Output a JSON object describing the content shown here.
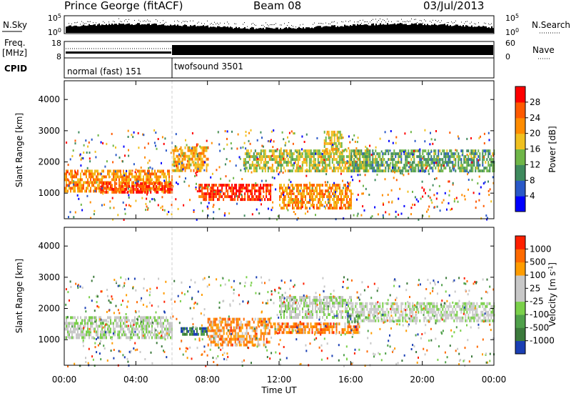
{
  "header": {
    "station": "Prince George (fitACF)",
    "beam": "Beam 08",
    "date": "03/Jul/2013"
  },
  "nsky_panel": {
    "left_label": "N.Sky",
    "left_ticks": [
      "10^5",
      "10^0"
    ],
    "right_label": "N.Search",
    "right_ticks": [
      "10^5",
      "10^0"
    ]
  },
  "freq_panel": {
    "left_label_1": "Freq.",
    "left_label_2": "[MHz]",
    "left_ticks": [
      "18",
      "8"
    ],
    "right_label": "Nave",
    "right_ticks": [
      "60",
      "0"
    ]
  },
  "cpid_panel": {
    "label": "CPID",
    "modes": [
      {
        "name": "normal (fast) 151",
        "start_h": 0
      },
      {
        "name": "twofsound 3501",
        "start_h": 6
      }
    ]
  },
  "x_axis": {
    "title": "Time UT",
    "ticks": [
      "00:00",
      "04:00",
      "08:00",
      "12:00",
      "16:00",
      "20:00",
      "00:00"
    ]
  },
  "chart_data": [
    {
      "type": "heatmap",
      "name": "power",
      "ylabel": "Slant Range [km]",
      "yticks": [
        "1000",
        "2000",
        "3000",
        "4000"
      ],
      "ylim": [
        180,
        4600
      ],
      "xlim_hours": [
        0,
        24
      ],
      "colorbar": {
        "label": "Power [dB]",
        "ticks": [
          "4",
          "8",
          "12",
          "16",
          "20",
          "24",
          "28"
        ],
        "range": [
          0,
          30
        ],
        "colors": [
          "#0000ff",
          "#2a59c8",
          "#3f8a5e",
          "#6fb648",
          "#f0c020",
          "#ff8c00",
          "#ff5a00",
          "#ff0000"
        ]
      },
      "regions": [
        {
          "t0": 0,
          "t1": 6,
          "r0": 1100,
          "r1": 1750,
          "level": 0.72
        },
        {
          "t0": 2,
          "t1": 6,
          "r0": 1000,
          "r1": 1350,
          "level": 0.92
        },
        {
          "t0": 6,
          "t1": 8,
          "r0": 1700,
          "r1": 2500,
          "level": 0.65
        },
        {
          "t0": 7.5,
          "t1": 11.5,
          "r0": 800,
          "r1": 1300,
          "level": 0.95
        },
        {
          "t0": 10,
          "t1": 17,
          "r0": 1700,
          "r1": 2400,
          "level": 0.5
        },
        {
          "t0": 12,
          "t1": 16,
          "r0": 500,
          "r1": 1300,
          "level": 0.7
        },
        {
          "t0": 14.5,
          "t1": 15.5,
          "r0": 2300,
          "r1": 3000,
          "level": 0.55
        },
        {
          "t0": 16,
          "t1": 24,
          "r0": 1700,
          "r1": 2400,
          "level": 0.35
        }
      ]
    },
    {
      "type": "heatmap",
      "name": "velocity",
      "ylabel": "Slant Range [km]",
      "yticks": [
        "1000",
        "2000",
        "3000",
        "4000"
      ],
      "ylim": [
        180,
        4600
      ],
      "xlim_hours": [
        0,
        24
      ],
      "colorbar": {
        "label": "Velocity [m s^-1]",
        "ticks": [
          "1000",
          "500",
          "100",
          "25",
          "-25",
          "-100",
          "-500",
          "-1000"
        ],
        "range": [
          -1000,
          1000
        ],
        "colors": [
          "#1a3fb4",
          "#3c7a3c",
          "#4fa04a",
          "#7ad04a",
          "#c8c8c8",
          "#c8c8c8",
          "#ff9c00",
          "#ff6a00",
          "#ff2000"
        ]
      },
      "regions": [
        {
          "t0": 0,
          "t1": 6,
          "r0": 1100,
          "r1": 1750,
          "level": 0.5
        },
        {
          "t0": 6.5,
          "t1": 8,
          "r0": 1150,
          "r1": 1400,
          "level": 0.12
        },
        {
          "t0": 8,
          "t1": 11.5,
          "r0": 800,
          "r1": 1700,
          "level": 0.78
        },
        {
          "t0": 11.5,
          "t1": 16.5,
          "r0": 1250,
          "r1": 1550,
          "level": 0.8
        },
        {
          "t0": 12,
          "t1": 16,
          "r0": 1700,
          "r1": 2400,
          "level": 0.5
        },
        {
          "t0": 16,
          "t1": 24,
          "r0": 1600,
          "r1": 2200,
          "level": 0.5
        },
        {
          "t0": 15.8,
          "t1": 16.5,
          "r0": 1550,
          "r1": 1800,
          "level": 0.15
        }
      ]
    }
  ]
}
